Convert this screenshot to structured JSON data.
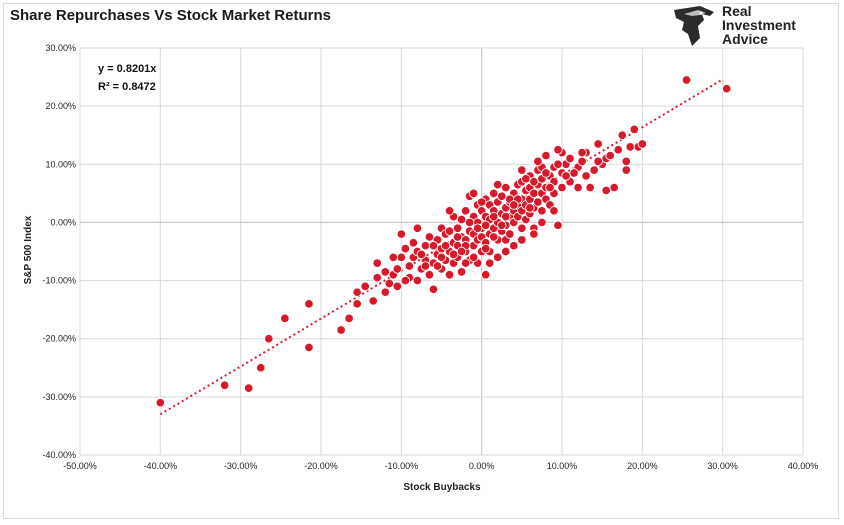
{
  "title": "Share Repurchases Vs Stock Market Returns",
  "logo": {
    "line1": "Real",
    "line2": "Investment",
    "line3": "Advice",
    "icon": "eagle-head-icon"
  },
  "colors": {
    "point": "#d7192c",
    "point_stroke": "#ffffff",
    "trend": "#d7192c",
    "grid": "#d9d9d9",
    "zero_axis": "#bfbfbf"
  },
  "chart_data": {
    "type": "scatter",
    "title": "Share Repurchases Vs Stock Market Returns",
    "xlabel": "Stock Buybacks",
    "ylabel": "S&P 500 Index",
    "xlim": [
      -50,
      40
    ],
    "ylim": [
      -40,
      30
    ],
    "x_ticks": [
      "-50.00%",
      "-40.00%",
      "-30.00%",
      "-20.00%",
      "-10.00%",
      "0.00%",
      "10.00%",
      "20.00%",
      "30.00%",
      "40.00%"
    ],
    "y_ticks": [
      "30.00%",
      "20.00%",
      "10.00%",
      "0.00%",
      "-10.00%",
      "-20.00%",
      "-30.00%",
      "-40.00%"
    ],
    "grid": "horizontal+vertical",
    "trendline": {
      "slope": 0.8201,
      "x_range": [
        -40,
        30
      ],
      "style": "dotted"
    },
    "annotations": {
      "equation": "y = 0.8201x",
      "r2": "R² = 0.8472"
    },
    "points": [
      [
        -40,
        -31
      ],
      [
        -32,
        -28
      ],
      [
        -29,
        -28.5
      ],
      [
        -27.5,
        -25
      ],
      [
        -26.5,
        -20
      ],
      [
        -24.5,
        -16.5
      ],
      [
        -21.5,
        -14
      ],
      [
        -21.5,
        -21.5
      ],
      [
        -17.5,
        -18.5
      ],
      [
        -16.5,
        -16.5
      ],
      [
        -15.5,
        -14
      ],
      [
        -15.5,
        -12
      ],
      [
        -14.5,
        -11
      ],
      [
        -13.5,
        -13.5
      ],
      [
        -13,
        -9.5
      ],
      [
        -13,
        -7
      ],
      [
        -12,
        -12
      ],
      [
        -11.5,
        -10.5
      ],
      [
        -11,
        -9
      ],
      [
        -10.5,
        -11
      ],
      [
        -10.5,
        -8
      ],
      [
        -10,
        -6
      ],
      [
        -10,
        -2
      ],
      [
        -9.5,
        -4.5
      ],
      [
        -9,
        -7.5
      ],
      [
        -9,
        -9.5
      ],
      [
        -8.5,
        -6
      ],
      [
        -8,
        -10
      ],
      [
        -8,
        -5
      ],
      [
        -7.5,
        -8
      ],
      [
        -7,
        -6.5
      ],
      [
        -7,
        -4
      ],
      [
        -6.5,
        -9
      ],
      [
        -6.5,
        -2.5
      ],
      [
        -6,
        -7
      ],
      [
        -6,
        -11.5
      ],
      [
        -5.5,
        -5.5
      ],
      [
        -5.5,
        -3
      ],
      [
        -5,
        -8
      ],
      [
        -5,
        -4.5
      ],
      [
        -5,
        -1
      ],
      [
        -4.5,
        -6.5
      ],
      [
        -4.5,
        -2
      ],
      [
        -4,
        -5
      ],
      [
        -4,
        -9
      ],
      [
        -4,
        -1.5
      ],
      [
        -3.5,
        -3.5
      ],
      [
        -3.5,
        -7
      ],
      [
        -3.5,
        1
      ],
      [
        -3,
        -4
      ],
      [
        -3,
        -6
      ],
      [
        -3,
        -1
      ],
      [
        -2.5,
        -8.5
      ],
      [
        -2.5,
        -2.5
      ],
      [
        -2.5,
        0.5
      ],
      [
        -2,
        -5
      ],
      [
        -2,
        -3
      ],
      [
        -2,
        2
      ],
      [
        -1.5,
        -6.5
      ],
      [
        -1.5,
        -1.5
      ],
      [
        -1.5,
        4.5
      ],
      [
        -1,
        -4
      ],
      [
        -1,
        -2
      ],
      [
        -1,
        1
      ],
      [
        -0.5,
        -7
      ],
      [
        -0.5,
        -3
      ],
      [
        -0.5,
        0
      ],
      [
        -0.5,
        3
      ],
      [
        0,
        -5
      ],
      [
        0,
        -1
      ],
      [
        0,
        2
      ],
      [
        0,
        -2.5
      ],
      [
        0.5,
        -3.5
      ],
      [
        0.5,
        1
      ],
      [
        0.5,
        4
      ],
      [
        0.5,
        -9
      ],
      [
        1,
        -2
      ],
      [
        1,
        0.5
      ],
      [
        1,
        3
      ],
      [
        1,
        -5
      ],
      [
        1.5,
        -1
      ],
      [
        1.5,
        2
      ],
      [
        1.5,
        5
      ],
      [
        2,
        -3
      ],
      [
        2,
        0
      ],
      [
        2,
        3.5
      ],
      [
        2,
        -6
      ],
      [
        2.5,
        -1.5
      ],
      [
        2.5,
        1.5
      ],
      [
        2.5,
        4.5
      ],
      [
        3,
        -0.5
      ],
      [
        3,
        2.5
      ],
      [
        3,
        6
      ],
      [
        3,
        -3
      ],
      [
        3.5,
        1
      ],
      [
        3.5,
        3.5
      ],
      [
        3.5,
        -2
      ],
      [
        4,
        0
      ],
      [
        4,
        2
      ],
      [
        4,
        5
      ],
      [
        4,
        -4
      ],
      [
        4.5,
        3
      ],
      [
        4.5,
        1
      ],
      [
        4.5,
        6.5
      ],
      [
        5,
        -1
      ],
      [
        5,
        2
      ],
      [
        5,
        4
      ],
      [
        5,
        7
      ],
      [
        5.5,
        0.5
      ],
      [
        5.5,
        3
      ],
      [
        5.5,
        5.5
      ],
      [
        6,
        1.5
      ],
      [
        6,
        4
      ],
      [
        6,
        6
      ],
      [
        6,
        8
      ],
      [
        6.5,
        2.5
      ],
      [
        6.5,
        5
      ],
      [
        6.5,
        -1
      ],
      [
        7,
        3.5
      ],
      [
        7,
        6.5
      ],
      [
        7,
        9
      ],
      [
        7.5,
        2
      ],
      [
        7.5,
        5
      ],
      [
        7.5,
        7.5
      ],
      [
        8,
        4
      ],
      [
        8,
        6
      ],
      [
        8,
        11.5
      ],
      [
        8.5,
        3
      ],
      [
        8.5,
        8
      ],
      [
        9,
        5
      ],
      [
        9,
        7
      ],
      [
        9,
        9.5
      ],
      [
        9.5,
        -0.5
      ],
      [
        10,
        6
      ],
      [
        10,
        8.5
      ],
      [
        10,
        12
      ],
      [
        10.5,
        10
      ],
      [
        11,
        7
      ],
      [
        11,
        11
      ],
      [
        12,
        9.5
      ],
      [
        12,
        6
      ],
      [
        12.5,
        10.5
      ],
      [
        13,
        12
      ],
      [
        13.5,
        6
      ],
      [
        14,
        9
      ],
      [
        14.5,
        13.5
      ],
      [
        15,
        10
      ],
      [
        15.5,
        11
      ],
      [
        15.5,
        5.5
      ],
      [
        16,
        11.5
      ],
      [
        16.5,
        6
      ],
      [
        17,
        12.5
      ],
      [
        17.5,
        15
      ],
      [
        18,
        10.5
      ],
      [
        18,
        9
      ],
      [
        18.5,
        13
      ],
      [
        19,
        16
      ],
      [
        19.5,
        13
      ],
      [
        20,
        13.5
      ],
      [
        25.5,
        24.5
      ],
      [
        30.5,
        23
      ],
      [
        -12,
        -8.5
      ],
      [
        -11,
        -6
      ],
      [
        -9.5,
        -10
      ],
      [
        -8.5,
        -3.5
      ],
      [
        -7.5,
        -5.5
      ],
      [
        -6,
        -4
      ],
      [
        -5.5,
        -7.5
      ],
      [
        -4.5,
        -4
      ],
      [
        -3.5,
        -5.5
      ],
      [
        -3,
        -2.5
      ],
      [
        -2,
        -4
      ],
      [
        -1,
        -6
      ],
      [
        -0.5,
        -1
      ],
      [
        0.5,
        -0.5
      ],
      [
        1.5,
        1
      ],
      [
        2.5,
        -0.5
      ],
      [
        3.5,
        4
      ],
      [
        4.5,
        4
      ],
      [
        5.5,
        7.5
      ],
      [
        6.5,
        7
      ],
      [
        7.5,
        9.5
      ],
      [
        8.5,
        6
      ],
      [
        9.5,
        10
      ],
      [
        10.5,
        8
      ],
      [
        -7,
        -7.5
      ],
      [
        -5,
        -6
      ],
      [
        -2.5,
        -5
      ],
      [
        -1.5,
        0
      ],
      [
        0,
        3.5
      ],
      [
        1.5,
        -2.5
      ],
      [
        3,
        1
      ],
      [
        4,
        3
      ],
      [
        6,
        2.5
      ],
      [
        8,
        8.5
      ],
      [
        11.5,
        8.5
      ],
      [
        12.5,
        12
      ],
      [
        13,
        8
      ],
      [
        14.5,
        10.5
      ],
      [
        -1,
        5
      ],
      [
        2,
        6.5
      ],
      [
        5,
        9
      ],
      [
        7,
        10.5
      ],
      [
        9.5,
        12.5
      ],
      [
        -8,
        -1
      ],
      [
        -4,
        2
      ],
      [
        -2,
        -7
      ],
      [
        0.5,
        -4.5
      ],
      [
        1,
        -7
      ],
      [
        3,
        -5
      ],
      [
        5,
        -3
      ],
      [
        6.5,
        -2
      ],
      [
        7.5,
        0
      ],
      [
        9,
        2
      ]
    ]
  }
}
